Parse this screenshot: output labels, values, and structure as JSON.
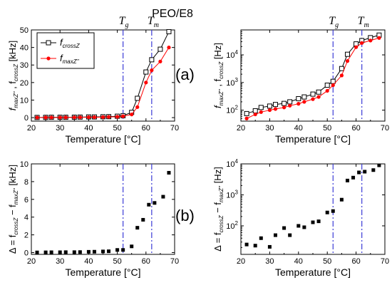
{
  "title": "PEO/E8",
  "panel_labels": [
    "(a)",
    "(b)"
  ],
  "transition_labels": {
    "Tg": "T",
    "Tg_sub": "g",
    "Tm": "T",
    "Tm_sub": "m"
  },
  "colors": {
    "black_series": "#000000",
    "red_series": "#ff0000",
    "vline": "#3b3bd6"
  },
  "chart_data": [
    {
      "type": "line",
      "panel": "top-left",
      "xlabel": "Temperature [°C]",
      "ylabel": "f_maxZ'', f_crossZ [kHz]",
      "ylabel_unit": "[kHz]",
      "xlim": [
        20,
        70
      ],
      "ylim": [
        -2,
        50
      ],
      "xticks": [
        20,
        30,
        40,
        50,
        60,
        70
      ],
      "yticks": [
        0,
        10,
        20,
        30,
        40,
        50
      ],
      "vlines": [
        52,
        62
      ],
      "legend": {
        "position": "top-left"
      },
      "series": [
        {
          "name": "f_crossZ",
          "marker": "open-square",
          "color": "#000000",
          "x": [
            22,
            25,
            27,
            30,
            32,
            35,
            37,
            40,
            42,
            45,
            47,
            50,
            52,
            55,
            57,
            60,
            62,
            65,
            68
          ],
          "y": [
            0.1,
            0.15,
            0.2,
            0.2,
            0.2,
            0.25,
            0.3,
            0.4,
            0.4,
            0.5,
            0.55,
            0.8,
            1.1,
            3,
            11,
            26,
            33,
            39,
            49
          ]
        },
        {
          "name": "f_maxZ''",
          "marker": "filled-circle",
          "color": "#ff0000",
          "x": [
            22,
            25,
            27,
            30,
            32,
            35,
            37,
            40,
            42,
            45,
            47,
            50,
            52,
            55,
            57,
            60,
            62,
            65,
            68
          ],
          "y": [
            0.05,
            0.08,
            0.1,
            0.1,
            0.12,
            0.15,
            0.18,
            0.25,
            0.25,
            0.3,
            0.4,
            0.5,
            0.8,
            1.8,
            6,
            20,
            27,
            32,
            40
          ]
        }
      ]
    },
    {
      "type": "line",
      "panel": "top-right",
      "xlabel": "Temperature [°C]",
      "ylabel": "f_maxZ'', f_crossZ [Hz]",
      "ylabel_unit": "[Hz]",
      "xlim": [
        20,
        70
      ],
      "ylim": [
        40,
        80000
      ],
      "yscale": "log",
      "xticks": [
        20,
        30,
        40,
        50,
        60,
        70
      ],
      "yticks": [
        100,
        1000,
        10000
      ],
      "yticklabels": [
        "10^2",
        "10^3",
        "10^4"
      ],
      "vlines": [
        52,
        62
      ],
      "series": [
        {
          "name": "f_crossZ",
          "marker": "open-square",
          "color": "#000000",
          "x": [
            22,
            25,
            27,
            30,
            32,
            35,
            37,
            40,
            42,
            45,
            47,
            50,
            52,
            55,
            57,
            60,
            62,
            65,
            68
          ],
          "y": [
            75,
            95,
            125,
            140,
            160,
            175,
            200,
            260,
            300,
            380,
            450,
            800,
            1100,
            3200,
            10500,
            25000,
            33000,
            42000,
            52000
          ]
        },
        {
          "name": "f_maxZ''",
          "marker": "filled-circle",
          "color": "#ff0000",
          "x": [
            22,
            25,
            27,
            30,
            32,
            35,
            37,
            40,
            42,
            45,
            47,
            50,
            52,
            55,
            57,
            60,
            62,
            65,
            68
          ],
          "y": [
            50,
            70,
            85,
            100,
            110,
            125,
            145,
            170,
            200,
            250,
            300,
            500,
            800,
            1800,
            6000,
            19000,
            27000,
            33000,
            41000
          ]
        }
      ]
    },
    {
      "type": "scatter",
      "panel": "bottom-left",
      "xlabel": "Temperature [°C]",
      "ylabel": "Δ = f_crossZ − f_maxZ'' [kHz]",
      "ylabel_unit": "[kHz]",
      "xlim": [
        20,
        70
      ],
      "ylim": [
        -0.2,
        10
      ],
      "xticks": [
        20,
        30,
        40,
        50,
        60,
        70
      ],
      "yticks": [
        0,
        2,
        4,
        6,
        8,
        10
      ],
      "vlines": [
        52,
        62
      ],
      "series": [
        {
          "name": "",
          "marker": "filled-square",
          "color": "#000000",
          "x": [
            22,
            25,
            27,
            30,
            32,
            35,
            37,
            40,
            42,
            45,
            47,
            50,
            52,
            55,
            57,
            59,
            61,
            63,
            66,
            68
          ],
          "y": [
            0.02,
            0.03,
            0.04,
            0.04,
            0.05,
            0.05,
            0.06,
            0.09,
            0.1,
            0.13,
            0.15,
            0.3,
            0.3,
            0.7,
            2.8,
            3.7,
            5.4,
            5.6,
            6.3,
            9.0
          ]
        }
      ]
    },
    {
      "type": "scatter",
      "panel": "bottom-right",
      "xlabel": "Temperature [°C]",
      "ylabel": "Δ = f_crossZ − f_maxZ'' [Hz]",
      "ylabel_unit": "[Hz]",
      "xlim": [
        20,
        70
      ],
      "ylim": [
        12,
        10000
      ],
      "yscale": "log",
      "xticks": [
        20,
        30,
        40,
        50,
        60,
        70
      ],
      "yticks": [
        100,
        1000,
        10000
      ],
      "yticklabels": [
        "10^2",
        "10^3",
        "10^4"
      ],
      "vlines": [
        52,
        62
      ],
      "series": [
        {
          "name": "",
          "marker": "filled-square",
          "color": "#000000",
          "x": [
            22,
            25,
            27,
            30,
            32,
            35,
            37,
            40,
            42,
            45,
            47,
            50,
            52,
            55,
            57,
            59,
            61,
            63,
            66,
            68
          ],
          "y": [
            25,
            23,
            40,
            21,
            50,
            85,
            50,
            100,
            90,
            130,
            140,
            270,
            300,
            700,
            2900,
            3600,
            5300,
            5600,
            6300,
            9000
          ]
        }
      ]
    }
  ]
}
